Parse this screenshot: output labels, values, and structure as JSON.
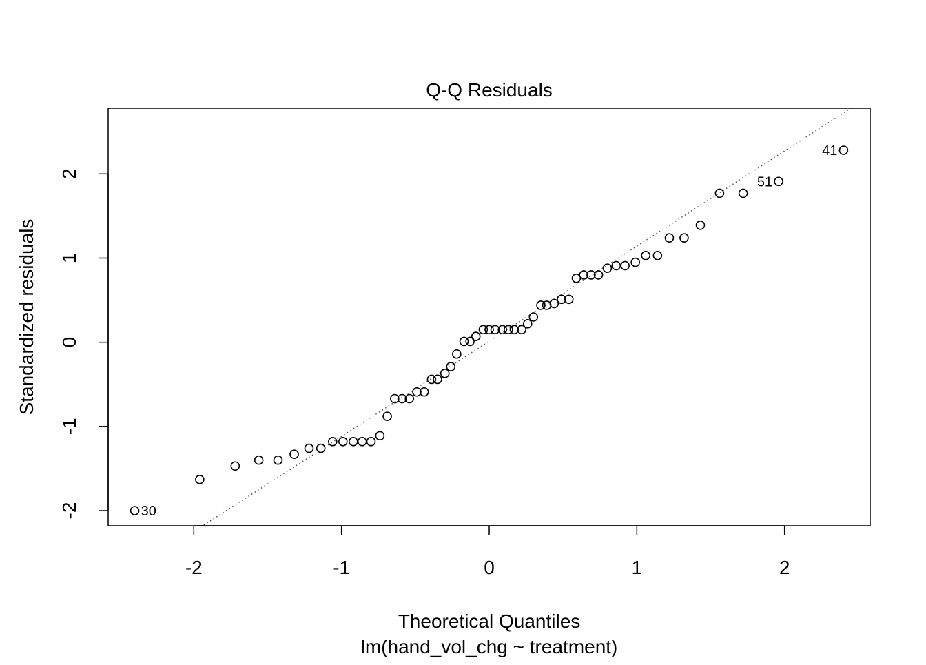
{
  "chart_data": {
    "type": "scatter",
    "title": "Q-Q Residuals",
    "xlabel": "Theoretical Quantiles",
    "xsublabel": "lm(hand_vol_chg ~ treatment)",
    "ylabel": "Standardized residuals",
    "xlim": [
      -2.58,
      2.58
    ],
    "ylim": [
      -2.18,
      2.78
    ],
    "xticks": [
      -2,
      -1,
      0,
      1,
      2
    ],
    "xtick_labels": [
      "-2",
      "-1",
      "0",
      "1",
      "2"
    ],
    "yticks": [
      -2,
      -1,
      0,
      1,
      2
    ],
    "ytick_labels": [
      "-2",
      "-1",
      "0",
      "1",
      "2"
    ],
    "grid": false,
    "reference_line": {
      "style": "dotted",
      "color": "#555555",
      "intercept": 0.012,
      "slope": 1.13
    },
    "points": [
      {
        "x": -2.4,
        "y": -2.0,
        "label": "30",
        "label_side": "right"
      },
      {
        "x": -1.96,
        "y": -1.63
      },
      {
        "x": -1.72,
        "y": -1.47
      },
      {
        "x": -1.56,
        "y": -1.4
      },
      {
        "x": -1.43,
        "y": -1.4
      },
      {
        "x": -1.32,
        "y": -1.33
      },
      {
        "x": -1.22,
        "y": -1.26
      },
      {
        "x": -1.14,
        "y": -1.26
      },
      {
        "x": -1.06,
        "y": -1.18
      },
      {
        "x": -0.99,
        "y": -1.18
      },
      {
        "x": -0.92,
        "y": -1.18
      },
      {
        "x": -0.86,
        "y": -1.18
      },
      {
        "x": -0.8,
        "y": -1.18
      },
      {
        "x": -0.74,
        "y": -1.11
      },
      {
        "x": -0.69,
        "y": -0.88
      },
      {
        "x": -0.64,
        "y": -0.67
      },
      {
        "x": -0.59,
        "y": -0.67
      },
      {
        "x": -0.54,
        "y": -0.67
      },
      {
        "x": -0.49,
        "y": -0.59
      },
      {
        "x": -0.44,
        "y": -0.59
      },
      {
        "x": -0.39,
        "y": -0.44
      },
      {
        "x": -0.35,
        "y": -0.44
      },
      {
        "x": -0.3,
        "y": -0.37
      },
      {
        "x": -0.26,
        "y": -0.29
      },
      {
        "x": -0.22,
        "y": -0.14
      },
      {
        "x": -0.17,
        "y": 0.01
      },
      {
        "x": -0.13,
        "y": 0.01
      },
      {
        "x": -0.09,
        "y": 0.07
      },
      {
        "x": -0.04,
        "y": 0.15
      },
      {
        "x": 0.0,
        "y": 0.15
      },
      {
        "x": 0.04,
        "y": 0.15
      },
      {
        "x": 0.09,
        "y": 0.15
      },
      {
        "x": 0.13,
        "y": 0.15
      },
      {
        "x": 0.17,
        "y": 0.15
      },
      {
        "x": 0.22,
        "y": 0.15
      },
      {
        "x": 0.26,
        "y": 0.22
      },
      {
        "x": 0.3,
        "y": 0.3
      },
      {
        "x": 0.35,
        "y": 0.44
      },
      {
        "x": 0.39,
        "y": 0.44
      },
      {
        "x": 0.44,
        "y": 0.46
      },
      {
        "x": 0.49,
        "y": 0.51
      },
      {
        "x": 0.54,
        "y": 0.51
      },
      {
        "x": 0.59,
        "y": 0.76
      },
      {
        "x": 0.64,
        "y": 0.8
      },
      {
        "x": 0.69,
        "y": 0.8
      },
      {
        "x": 0.74,
        "y": 0.8
      },
      {
        "x": 0.8,
        "y": 0.88
      },
      {
        "x": 0.86,
        "y": 0.91
      },
      {
        "x": 0.92,
        "y": 0.91
      },
      {
        "x": 0.99,
        "y": 0.95
      },
      {
        "x": 1.06,
        "y": 1.03
      },
      {
        "x": 1.14,
        "y": 1.03
      },
      {
        "x": 1.22,
        "y": 1.24
      },
      {
        "x": 1.32,
        "y": 1.24
      },
      {
        "x": 1.43,
        "y": 1.39
      },
      {
        "x": 1.56,
        "y": 1.77
      },
      {
        "x": 1.72,
        "y": 1.77
      },
      {
        "x": 1.96,
        "y": 1.91,
        "label": "51",
        "label_side": "left"
      },
      {
        "x": 2.4,
        "y": 2.28,
        "label": "41",
        "label_side": "left"
      }
    ]
  }
}
